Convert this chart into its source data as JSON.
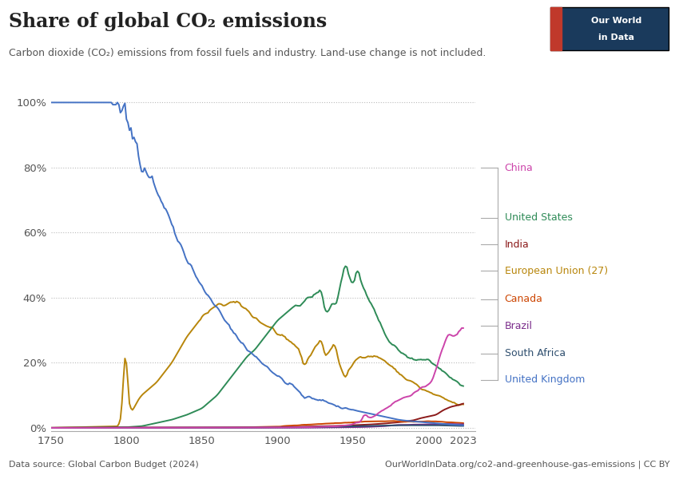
{
  "title": "Share of global CO₂ emissions",
  "subtitle": "Carbon dioxide (CO₂) emissions from fossil fuels and industry. Land-use change is not included.",
  "datasource": "Data source: Global Carbon Budget (2024)",
  "url": "OurWorldInData.org/co2-and-greenhouse-gas-emissions | CC BY",
  "colors": {
    "United Kingdom": "#4472C4",
    "United States": "#2E8B57",
    "India": "#8B1A1A",
    "European Union (27)": "#B8860B",
    "Canada": "#CC4400",
    "Brazil": "#7B2D8B",
    "South Africa": "#2F4F6F",
    "China": "#CC44AA"
  },
  "logo_bg": "#1a3a5c",
  "logo_red": "#c0392b"
}
